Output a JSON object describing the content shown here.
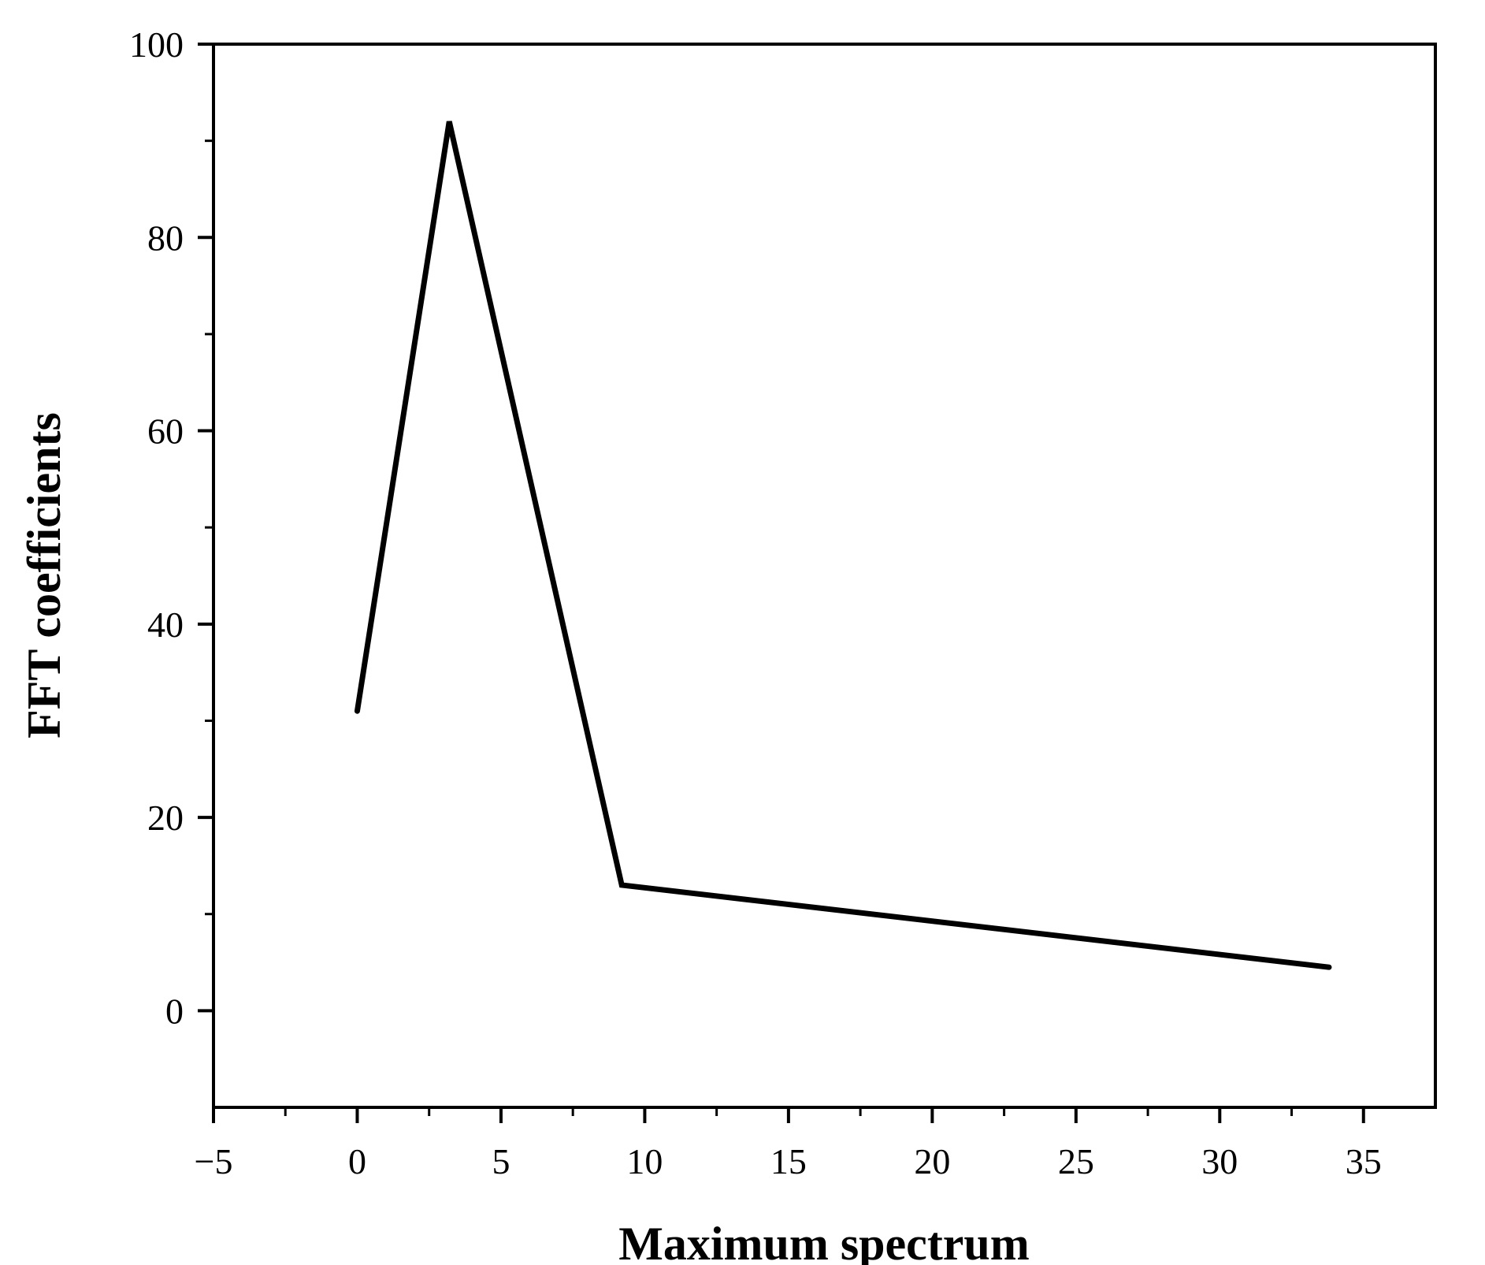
{
  "chart_data": {
    "type": "line",
    "title": "",
    "xlabel": "Maximum spectrum",
    "ylabel": "FFT coefficients",
    "xlim": [
      -5,
      37.5
    ],
    "ylim": [
      -10,
      100
    ],
    "xticks": [
      -5,
      0,
      5,
      10,
      15,
      20,
      25,
      30,
      35
    ],
    "xtick_labels": [
      "−5",
      "0",
      "5",
      "10",
      "15",
      "20",
      "25",
      "30",
      "35"
    ],
    "yticks": [
      0,
      20,
      40,
      60,
      80,
      100
    ],
    "ytick_labels": [
      "0",
      "20",
      "40",
      "60",
      "80",
      "100"
    ],
    "grid": false,
    "series": [
      {
        "color": "#000000",
        "x": [
          0,
          3.2,
          9.2,
          33.8
        ],
        "y": [
          31,
          92,
          13,
          4.5
        ]
      }
    ]
  }
}
